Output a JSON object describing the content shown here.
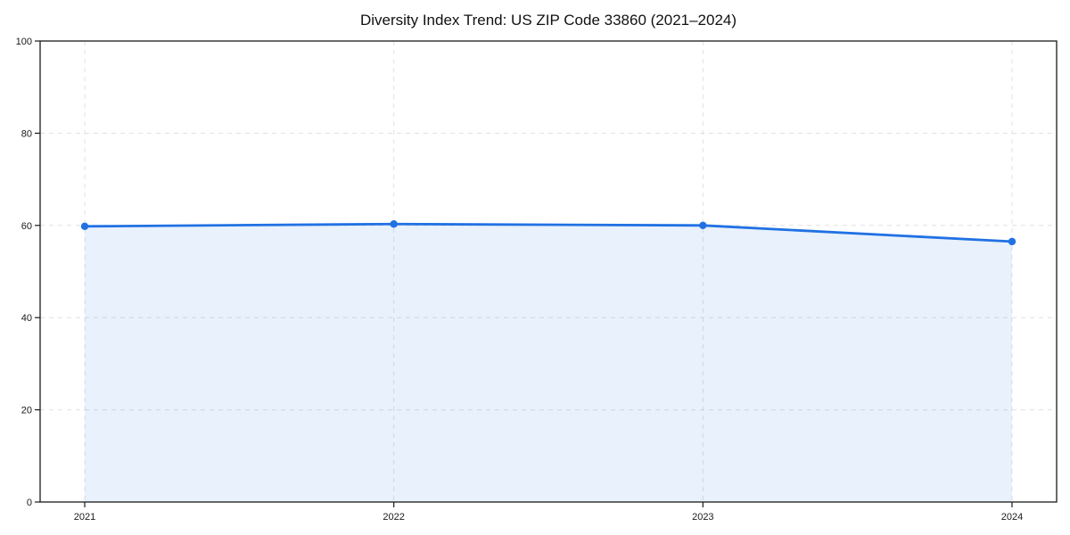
{
  "chart_data": {
    "type": "area",
    "title": "Diversity Index Trend: US ZIP Code 33860 (2021–2024)",
    "x": [
      "2021",
      "2022",
      "2023",
      "2024"
    ],
    "series": [
      {
        "name": "Diversity Index",
        "values": [
          59.8,
          60.3,
          60.0,
          56.5
        ]
      }
    ],
    "xlabel": "",
    "ylabel": "",
    "ylim": [
      0,
      100
    ],
    "yticks": [
      0,
      20,
      40,
      60,
      80,
      100
    ],
    "grid": "dashed, both axes",
    "legend": "none",
    "marker": "filled circle",
    "colors": {
      "line": "#2171e3",
      "fill": "rgba(33, 113, 227, 0.10)",
      "grid": "#dcdcdc",
      "frame": "#1a1a1a",
      "tick_text": "#1a1a1a",
      "title_text": "#111111",
      "background": "#ffffff"
    }
  }
}
